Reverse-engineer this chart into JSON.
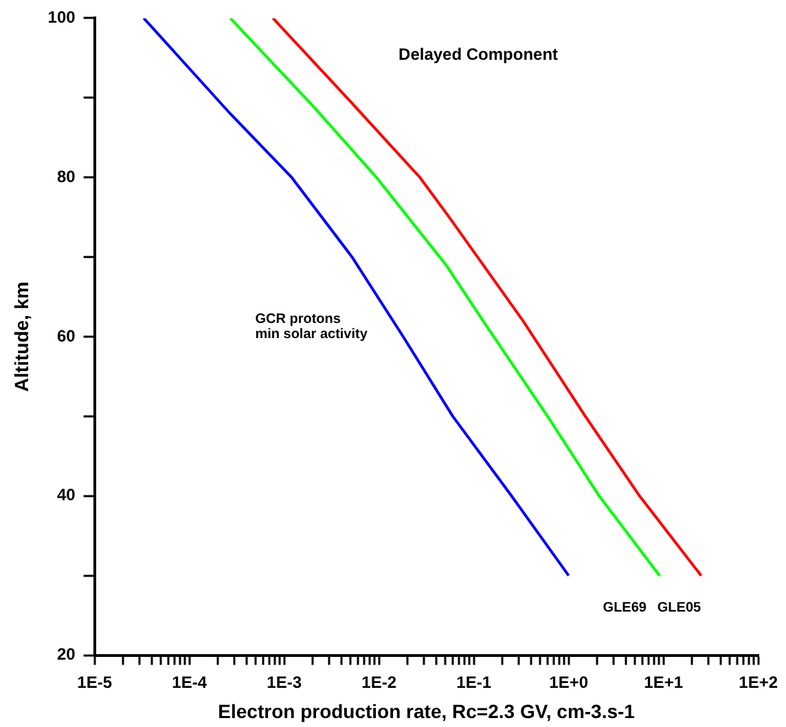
{
  "chart_data": {
    "type": "line",
    "xlabel": "Electron production rate, Rc=2.3 GV, cm-3.s-1",
    "ylabel": "Altitude, km",
    "log": "x",
    "xlim": [
      1e-05,
      100
    ],
    "xticks": [
      {
        "value": 1e-05,
        "label": "1E-5"
      },
      {
        "value": 2e-05,
        "label": null
      },
      {
        "value": 3e-05,
        "label": null
      },
      {
        "value": 4e-05,
        "label": null
      },
      {
        "value": 5e-05,
        "label": null
      },
      {
        "value": 6e-05,
        "label": null
      },
      {
        "value": 7e-05,
        "label": null
      },
      {
        "value": 8e-05,
        "label": null
      },
      {
        "value": 9e-05,
        "label": null
      },
      {
        "value": 0.0001,
        "label": "1E-4"
      },
      {
        "value": 0.0002,
        "label": null
      },
      {
        "value": 0.0003,
        "label": null
      },
      {
        "value": 0.0004,
        "label": null
      },
      {
        "value": 0.0005,
        "label": null
      },
      {
        "value": 0.0006,
        "label": null
      },
      {
        "value": 0.0007,
        "label": null
      },
      {
        "value": 0.0008,
        "label": null
      },
      {
        "value": 0.0009,
        "label": null
      },
      {
        "value": 0.001,
        "label": "1E-3"
      },
      {
        "value": 0.002,
        "label": null
      },
      {
        "value": 0.003,
        "label": null
      },
      {
        "value": 0.004,
        "label": null
      },
      {
        "value": 0.005,
        "label": null
      },
      {
        "value": 0.006,
        "label": null
      },
      {
        "value": 0.007,
        "label": null
      },
      {
        "value": 0.008,
        "label": null
      },
      {
        "value": 0.009,
        "label": null
      },
      {
        "value": 0.01,
        "label": "1E-2"
      },
      {
        "value": 0.02,
        "label": null
      },
      {
        "value": 0.03,
        "label": null
      },
      {
        "value": 0.04,
        "label": null
      },
      {
        "value": 0.05,
        "label": null
      },
      {
        "value": 0.06,
        "label": null
      },
      {
        "value": 0.07,
        "label": null
      },
      {
        "value": 0.08,
        "label": null
      },
      {
        "value": 0.09,
        "label": null
      },
      {
        "value": 0.1,
        "label": "1E-1"
      },
      {
        "value": 0.2,
        "label": null
      },
      {
        "value": 0.3,
        "label": null
      },
      {
        "value": 0.4,
        "label": null
      },
      {
        "value": 0.5,
        "label": null
      },
      {
        "value": 0.6,
        "label": null
      },
      {
        "value": 0.7,
        "label": null
      },
      {
        "value": 0.8,
        "label": null
      },
      {
        "value": 0.9,
        "label": null
      },
      {
        "value": 1,
        "label": "1E+0"
      },
      {
        "value": 2,
        "label": null
      },
      {
        "value": 3,
        "label": null
      },
      {
        "value": 4,
        "label": null
      },
      {
        "value": 5,
        "label": null
      },
      {
        "value": 6,
        "label": null
      },
      {
        "value": 7,
        "label": null
      },
      {
        "value": 8,
        "label": null
      },
      {
        "value": 9,
        "label": null
      },
      {
        "value": 10,
        "label": "1E+1"
      },
      {
        "value": 20,
        "label": null
      },
      {
        "value": 30,
        "label": null
      },
      {
        "value": 40,
        "label": null
      },
      {
        "value": 50,
        "label": null
      },
      {
        "value": 60,
        "label": null
      },
      {
        "value": 70,
        "label": null
      },
      {
        "value": 80,
        "label": null
      },
      {
        "value": 90,
        "label": null
      },
      {
        "value": 100,
        "label": "1E+2"
      }
    ],
    "ylim": [
      20,
      100
    ],
    "yticks": [
      20,
      {
        "value": 30,
        "label": null
      },
      40,
      {
        "value": 50,
        "label": null
      },
      60,
      {
        "value": 70,
        "label": null
      },
      80,
      {
        "value": 90,
        "label": null
      },
      100
    ],
    "grid": false,
    "legend": false,
    "marker": "none",
    "line_style": "solid",
    "series": [
      {
        "color": "#0000ff",
        "x": [
          3.3e-05,
          0.00027,
          0.0012,
          0.0052,
          0.018,
          0.06,
          0.25,
          1.0
        ],
        "values": [
          100,
          88,
          80,
          70,
          60,
          50,
          40,
          30
        ]
      },
      {
        "color": "#00ff00",
        "x": [
          0.00027,
          0.002,
          0.0094,
          0.051,
          0.125,
          0.6,
          2.1,
          9.1
        ],
        "values": [
          100,
          89,
          80,
          69,
          62,
          50,
          40,
          30
        ]
      },
      {
        "color": "#ff0000",
        "x": [
          0.00076,
          0.0046,
          0.027,
          0.055,
          0.33,
          1.5,
          5.6,
          25
        ],
        "values": [
          100,
          90,
          80,
          75,
          62,
          50,
          40,
          30
        ]
      }
    ],
    "annotations": [
      "Delayed Component",
      "GCR protons\nmin solar activity",
      "GLE69",
      "GLE05"
    ]
  }
}
